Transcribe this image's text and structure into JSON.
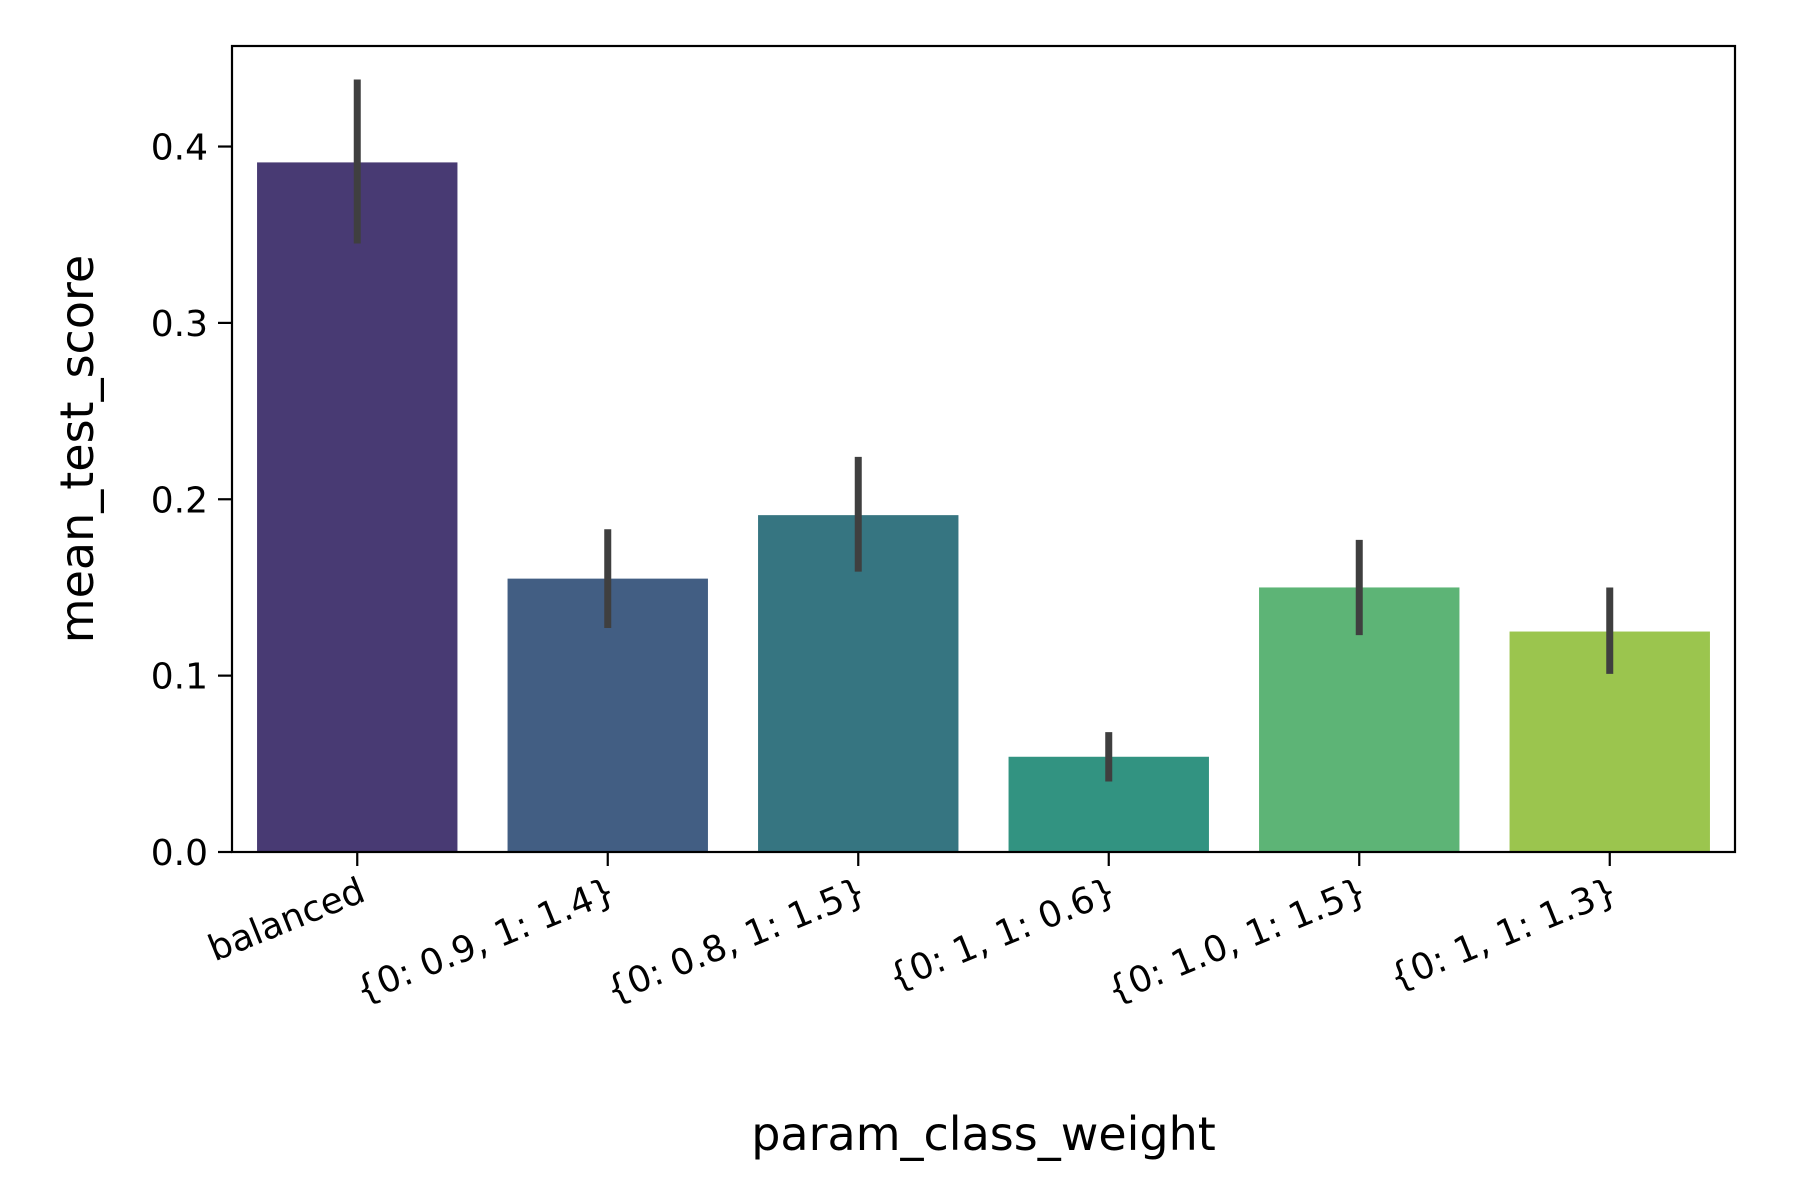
{
  "chart_data": {
    "type": "bar",
    "title": "",
    "xlabel": "param_class_weight",
    "ylabel": "mean_test_score",
    "categories": [
      "balanced",
      "{0: 0.9, 1: 1.4}",
      "{0: 0.8, 1: 1.5}",
      "{0: 1, 1: 0.6}",
      "{0: 1.0, 1: 1.5}",
      "{0: 1, 1: 1.3}"
    ],
    "values": [
      0.391,
      0.155,
      0.191,
      0.054,
      0.15,
      0.125
    ],
    "error_low": [
      0.345,
      0.127,
      0.159,
      0.04,
      0.123,
      0.101
    ],
    "error_high": [
      0.438,
      0.183,
      0.224,
      0.068,
      0.177,
      0.15
    ],
    "colors": [
      "#483a73",
      "#425e83",
      "#367581",
      "#329381",
      "#5db476",
      "#9bc54e"
    ],
    "error_color": "#3f3f3f",
    "ylim": [
      0,
      0.457
    ],
    "yticks": [
      0.0,
      0.1,
      0.2,
      0.3,
      0.4
    ],
    "ytick_labels": [
      "0.0",
      "0.1",
      "0.2",
      "0.3",
      "0.4"
    ],
    "grid": false,
    "legend": "none"
  }
}
